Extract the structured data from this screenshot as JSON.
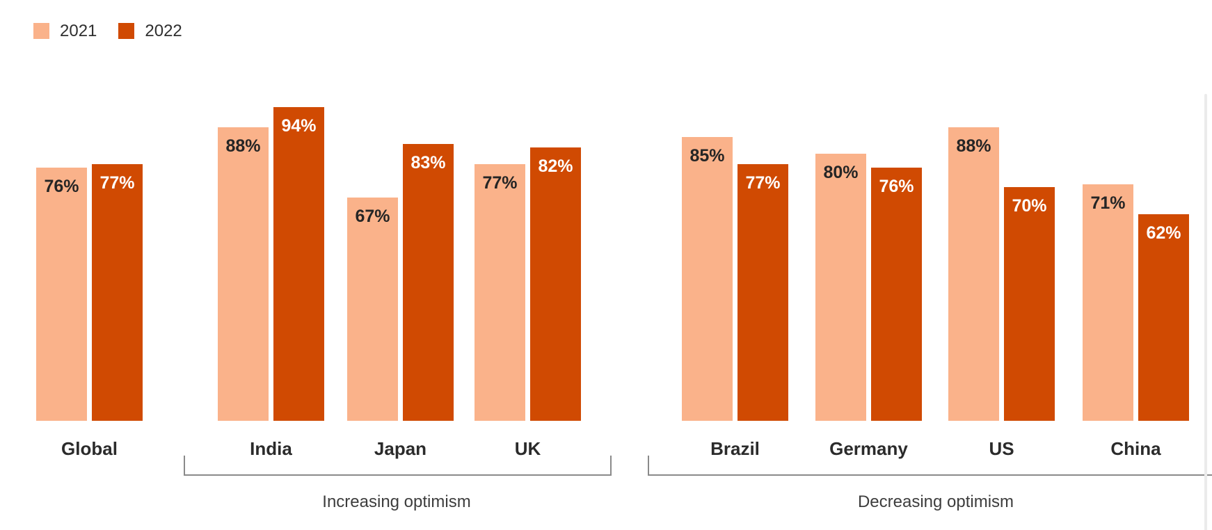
{
  "chart_data": {
    "type": "bar",
    "title": "",
    "categories": [
      "Global",
      "India",
      "Japan",
      "UK",
      "Brazil",
      "Germany",
      "US",
      "China"
    ],
    "series": [
      {
        "name": "2021",
        "color": "#FAB28A",
        "values": [
          76,
          88,
          67,
          77,
          85,
          80,
          88,
          71
        ]
      },
      {
        "name": "2022",
        "color": "#D04A02",
        "values": [
          77,
          94,
          83,
          82,
          77,
          76,
          70,
          62
        ]
      }
    ],
    "value_suffix": "%",
    "data_labels": [
      "76%",
      "88%",
      "67%",
      "77%",
      "85%",
      "80%",
      "88%",
      "71%",
      "77%",
      "94%",
      "83%",
      "82%",
      "77%",
      "76%",
      "70%",
      "62%"
    ],
    "ylim": [
      0,
      100
    ],
    "grid": false,
    "axis_visible": false,
    "legend_position": "top-left",
    "group_annotations": [
      {
        "label": "Increasing optimism",
        "categories": [
          "India",
          "Japan",
          "UK"
        ]
      },
      {
        "label": "Decreasing optimism",
        "categories": [
          "Brazil",
          "Germany",
          "US",
          "China"
        ]
      }
    ],
    "colors": {
      "series_2021": "#FAB28A",
      "series_2022": "#D04A02",
      "value_label_on_light": "#252525",
      "value_label_on_dark": "#FFFFFF",
      "category_label": "#2B2B2B",
      "legend_text": "#2F2F2F",
      "annotation_text": "#3D3D3D",
      "bracket_line": "#8A8A8A",
      "background": "#FFFFFF"
    }
  }
}
